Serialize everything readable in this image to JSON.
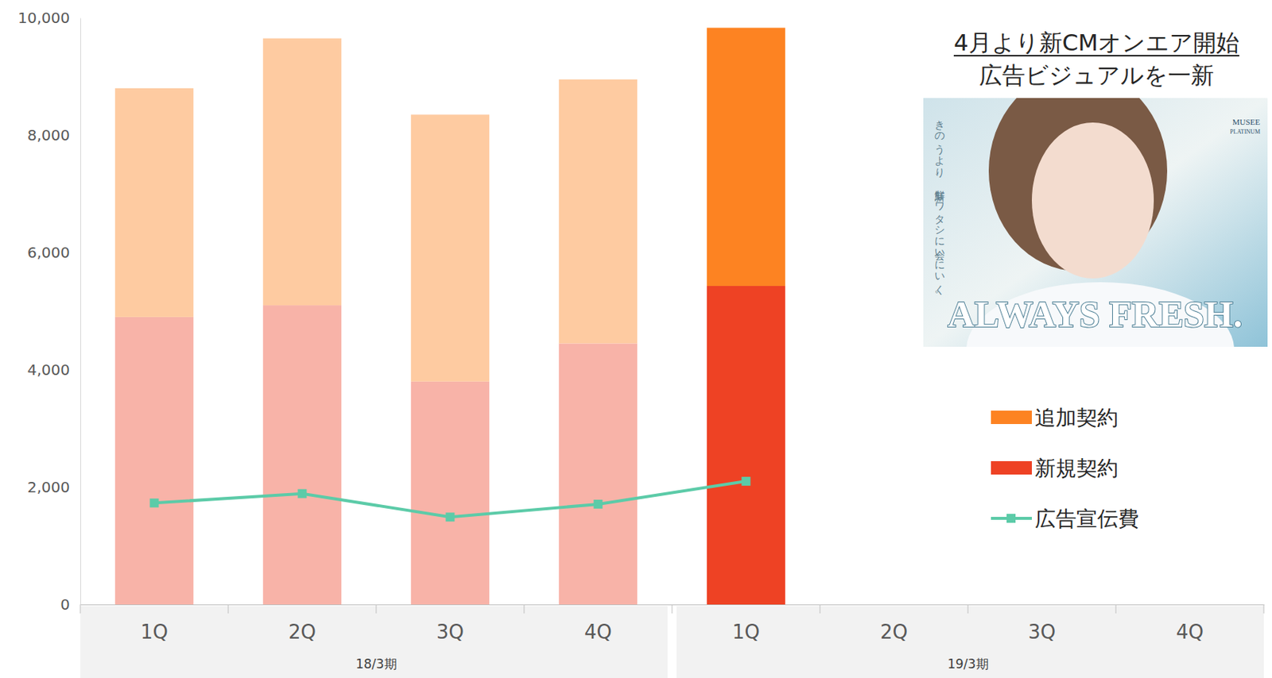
{
  "chart_data": {
    "type": "bar",
    "stacked": true,
    "legend": "right",
    "grid": false,
    "annotations": [
      "4月より新CMオンエア開始",
      "広告ビジュアルを一新",
      "きのうより、新鮮なワタシに会いにいく。",
      "ALWAYS FRESH.",
      "MUSEE",
      "PLATINUM"
    ],
    "categories": [
      "1Q",
      "2Q",
      "3Q",
      "4Q",
      "1Q",
      "2Q",
      "3Q",
      "4Q"
    ],
    "groups": [
      {
        "label": "18/3期",
        "size": 4
      },
      {
        "label": "19/3期",
        "size": 4
      }
    ],
    "ylim": [
      0,
      10000
    ],
    "yticks": [
      0,
      {
        "value": 2000,
        "label": "2,000"
      },
      {
        "value": 4000,
        "label": "4,000"
      },
      {
        "value": 6000,
        "label": "6,000"
      },
      {
        "value": 8000,
        "label": "8,000"
      },
      {
        "value": 10000,
        "label": "10,000"
      }
    ],
    "series": [
      {
        "name": "新規契約",
        "type": "bar",
        "color": "#ee4224",
        "colors": [
          "#f8b3a8",
          "#f8b3a8",
          "#f8b3a8",
          "#f8b3a8",
          "#ee4224",
          "#ee4224",
          "#ee4224",
          "#ee4224"
        ],
        "values": [
          4900,
          5100,
          3800,
          4450,
          5430,
          null,
          null,
          null
        ]
      },
      {
        "name": "追加契約",
        "type": "bar",
        "color": "#fd8322",
        "colors": [
          "#fecba1",
          "#fecba1",
          "#fecba1",
          "#fecba1",
          "#fd8322",
          "#fd8322",
          "#fd8322",
          "#fd8322"
        ],
        "values": [
          3900,
          4550,
          4550,
          4500,
          4400,
          null,
          null,
          null
        ]
      },
      {
        "name": "広告宣伝費",
        "type": "line",
        "color": "#5ccba8",
        "marker": "square",
        "values": [
          1730,
          1890,
          1490,
          1710,
          2100,
          null,
          null,
          null
        ]
      }
    ]
  }
}
